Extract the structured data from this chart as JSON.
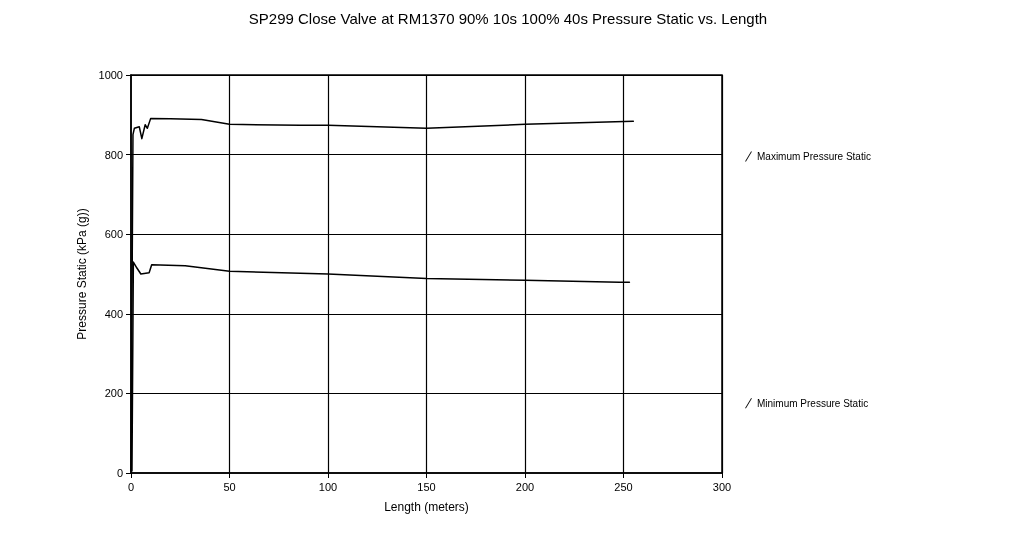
{
  "chart_data": {
    "type": "line",
    "title": "SP299 Close Valve at RM1370 90% 10s 100% 40s Pressure Static vs. Length",
    "xlabel": "Length (meters)",
    "ylabel": "Pressure Static (kPa (g))",
    "series": [
      {
        "name": "Maximum Pressure Static",
        "color": "#000000",
        "x": [
          0,
          1,
          1.7,
          4.2,
          5.5,
          7.2,
          8.3,
          10,
          20,
          35.8,
          50,
          86,
          100,
          150,
          200,
          255
        ],
        "values": [
          5,
          850,
          866,
          870,
          840,
          875,
          866,
          891,
          890,
          888,
          876,
          874,
          874,
          866,
          876,
          884
        ]
      },
      {
        "name": "Minimum Pressure Static",
        "color": "#000000",
        "x": [
          0.5,
          1.2,
          3,
          5,
          9.2,
          10.5,
          27.5,
          50,
          100,
          150,
          200,
          248,
          253
        ],
        "values": [
          5,
          530,
          515,
          500,
          503,
          523,
          521,
          507,
          500,
          489,
          484,
          479,
          479
        ]
      }
    ],
    "xlim": [
      0,
      300
    ],
    "xticks": [
      0,
      50,
      100,
      150,
      200,
      250,
      300
    ],
    "ylim": [
      0,
      1000
    ],
    "yticks": [
      0,
      200,
      400,
      600,
      800,
      1000
    ],
    "grid": true,
    "legend": "right",
    "marker": "none",
    "line_style": "solid"
  }
}
